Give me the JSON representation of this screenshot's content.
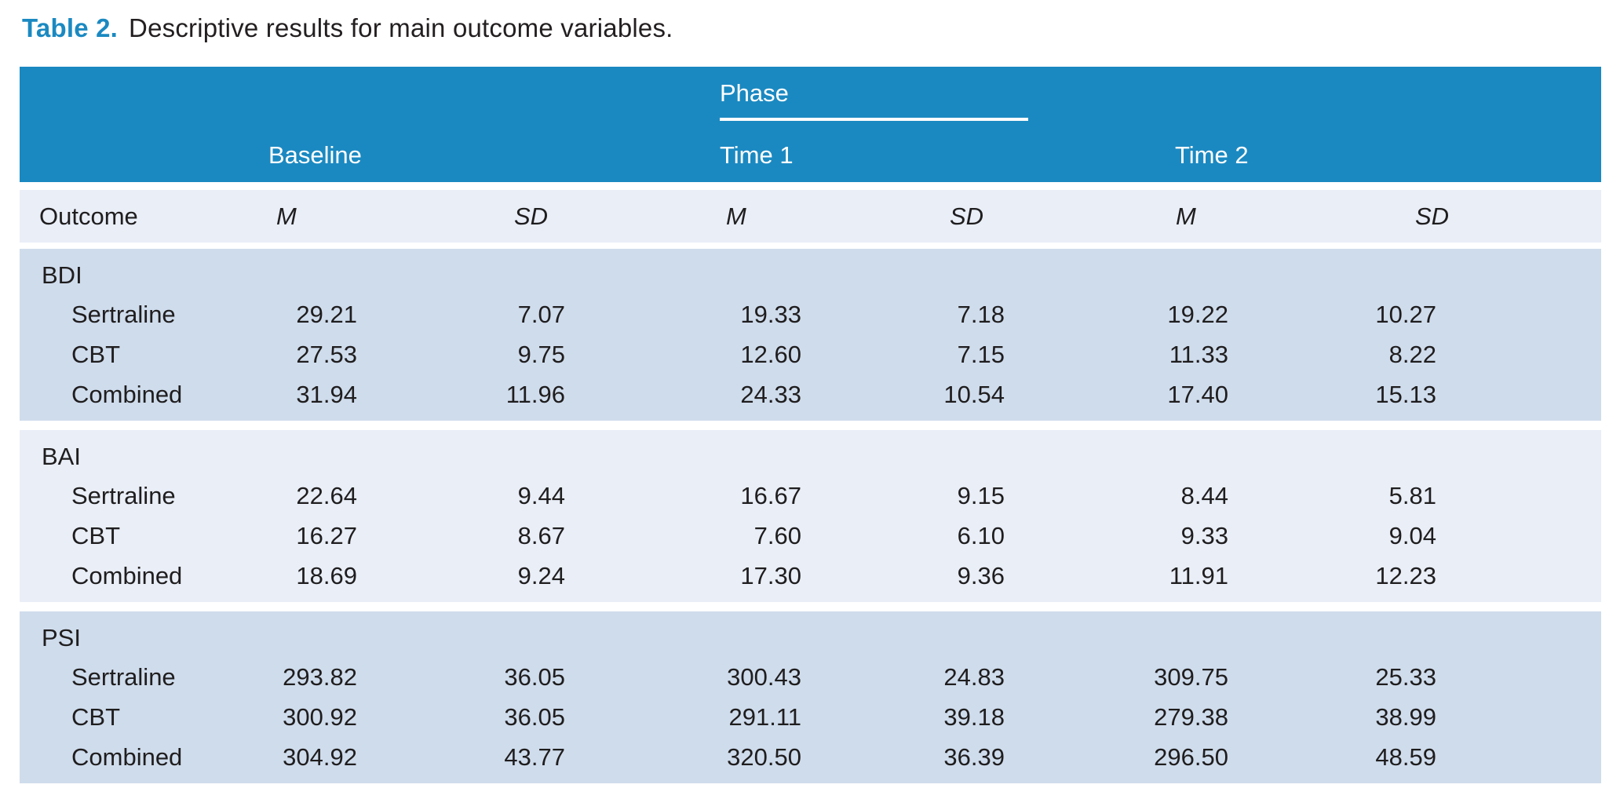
{
  "title": {
    "label": "Table 2.",
    "text": "Descriptive results for main outcome variables."
  },
  "header": {
    "phase_label": "Phase",
    "col_groups": [
      "Baseline",
      "Time 1",
      "Time 2"
    ],
    "outcome_label": "Outcome",
    "stat_headers": [
      "M",
      "SD",
      "M",
      "SD",
      "M",
      "SD"
    ]
  },
  "colors": {
    "header_blue": "#1b89c1",
    "band_dark": "#cfdcec",
    "band_light": "#e9eef7",
    "rule_white": "#ffffff",
    "text": "#1f1d1e"
  },
  "table": {
    "groups": [
      {
        "name": "BDI",
        "rows": [
          {
            "label": "Sertraline",
            "values": [
              "29.21",
              "7.07",
              "19.33",
              "7.18",
              "19.22",
              "10.27"
            ]
          },
          {
            "label": "CBT",
            "values": [
              "27.53",
              "9.75",
              "12.60",
              "7.15",
              "11.33",
              "8.22"
            ]
          },
          {
            "label": "Combined",
            "values": [
              "31.94",
              "11.96",
              "24.33",
              "10.54",
              "17.40",
              "15.13"
            ]
          }
        ]
      },
      {
        "name": "BAI",
        "rows": [
          {
            "label": "Sertraline",
            "values": [
              "22.64",
              "9.44",
              "16.67",
              "9.15",
              "8.44",
              "5.81"
            ]
          },
          {
            "label": "CBT",
            "values": [
              "16.27",
              "8.67",
              "7.60",
              "6.10",
              "9.33",
              "9.04"
            ]
          },
          {
            "label": "Combined",
            "values": [
              "18.69",
              "9.24",
              "17.30",
              "9.36",
              "11.91",
              "12.23"
            ]
          }
        ]
      },
      {
        "name": "PSI",
        "rows": [
          {
            "label": "Sertraline",
            "values": [
              "293.82",
              "36.05",
              "300.43",
              "24.83",
              "309.75",
              "25.33"
            ]
          },
          {
            "label": "CBT",
            "values": [
              "300.92",
              "36.05",
              "291.11",
              "39.18",
              "279.38",
              "38.99"
            ]
          },
          {
            "label": "Combined",
            "values": [
              "304.92",
              "43.77",
              "320.50",
              "36.39",
              "296.50",
              "48.59"
            ]
          }
        ]
      }
    ]
  }
}
